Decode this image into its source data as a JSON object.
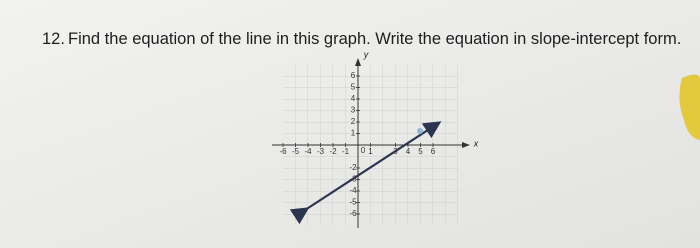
{
  "question": {
    "number": "12.",
    "text": "Find the equation of the line in this graph. Write the equation in slope-intercept form."
  },
  "graph": {
    "x_axis_name": "x",
    "y_axis_name": "y",
    "x_tick_labels": [
      -6,
      -5,
      -4,
      -3,
      -2,
      -1,
      1,
      3,
      4,
      5,
      6
    ],
    "y_tick_labels": [
      6,
      5,
      4,
      3,
      2,
      1,
      -2,
      -3,
      -4,
      -5,
      -6
    ],
    "origin_label": "0"
  }
}
